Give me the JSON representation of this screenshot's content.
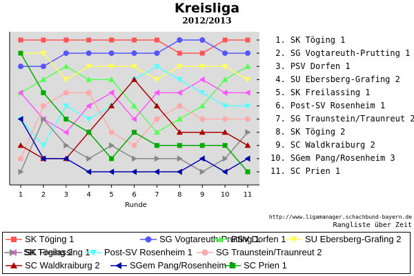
{
  "chart_data": {
    "type": "line",
    "title": "Kreisliga",
    "subtitle": "2012/2013",
    "xlabel": "Runde",
    "x": [
      1,
      2,
      3,
      4,
      5,
      6,
      7,
      8,
      9,
      10,
      11
    ],
    "ylim": [
      1,
      11
    ],
    "y_inverted": true,
    "grid": false,
    "legend_position": "bottom",
    "rank_labels": [
      "1. SK Töging 1",
      "2. SG Vogtareuth-Prutting 1",
      "3. PSV Dorfen 1",
      "4. SU Ebersberg-Grafing 2",
      "5. SK Freilassing 1",
      "6. Post-SV Rosenheim 1",
      "7. SG Traunstein/Traunreut 2",
      "8. SK Töging 2",
      "9. SC Waldkraiburg 2",
      "10. SGem Pang/Rosenheim 3",
      "11. SC Prien 1"
    ],
    "series": [
      {
        "name": "SK Töging 1",
        "color": "#ff5555",
        "marker": "square",
        "values": [
          1,
          1,
          1,
          1,
          1,
          1,
          1,
          2,
          2,
          1,
          1
        ]
      },
      {
        "name": "SG Vogtareuth-Prutting 1",
        "color": "#5555ff",
        "marker": "circle",
        "values": [
          3,
          3,
          2,
          2,
          2,
          2,
          2,
          1,
          1,
          2,
          2
        ]
      },
      {
        "name": "PSV Dorfen 1",
        "color": "#55ff55",
        "marker": "triangle-up",
        "values": [
          5,
          4,
          3,
          4,
          4,
          6,
          8,
          7,
          6,
          4,
          3
        ]
      },
      {
        "name": "SU Ebersberg-Grafing 2",
        "color": "#ffff55",
        "marker": "triangle-down",
        "values": [
          2,
          2,
          4,
          3,
          3,
          3,
          4,
          3,
          3,
          3,
          4
        ]
      },
      {
        "name": "SK Freilassing 1",
        "color": "#ff55ff",
        "marker": "triangle-left",
        "values": [
          5,
          7,
          8,
          6,
          5,
          7,
          5,
          5,
          4,
          5,
          5
        ]
      },
      {
        "name": "Post-SV Rosenheim 1",
        "color": "#55ffff",
        "marker": "triangle-down",
        "values": [
          7,
          9,
          6,
          7,
          6,
          4,
          3,
          4,
          5,
          6,
          6
        ]
      },
      {
        "name": "SG Traunstein/Traunreut 2",
        "color": "#ffaaaa",
        "marker": "circle",
        "values": [
          10,
          6,
          5,
          5,
          8,
          9,
          7,
          6,
          7,
          7,
          7
        ]
      },
      {
        "name": "SK Töging 2",
        "color": "#888888",
        "marker": "triangle-right",
        "values": [
          11,
          7,
          9,
          10,
          9,
          10,
          10,
          10,
          11,
          10,
          8
        ]
      },
      {
        "name": "SC Waldkraiburg 2",
        "color": "#aa0000",
        "marker": "triangle-up",
        "values": [
          9,
          10,
          10,
          8,
          6,
          4,
          6,
          8,
          8,
          8,
          9
        ]
      },
      {
        "name": "SGem Pang/Rosenheim 3",
        "color": "#0000aa",
        "marker": "triangle-left",
        "values": [
          7,
          10,
          10,
          11,
          11,
          11,
          11,
          11,
          10,
          11,
          10
        ]
      },
      {
        "name": "SC Prien 1",
        "color": "#00aa00",
        "marker": "square",
        "values": [
          2,
          5,
          7,
          8,
          10,
          8,
          9,
          9,
          9,
          9,
          11
        ]
      }
    ]
  },
  "footer": {
    "url": "http://www.ligamanager.schachbund-bayern.de",
    "caption": "Rangliste über Zeit"
  }
}
